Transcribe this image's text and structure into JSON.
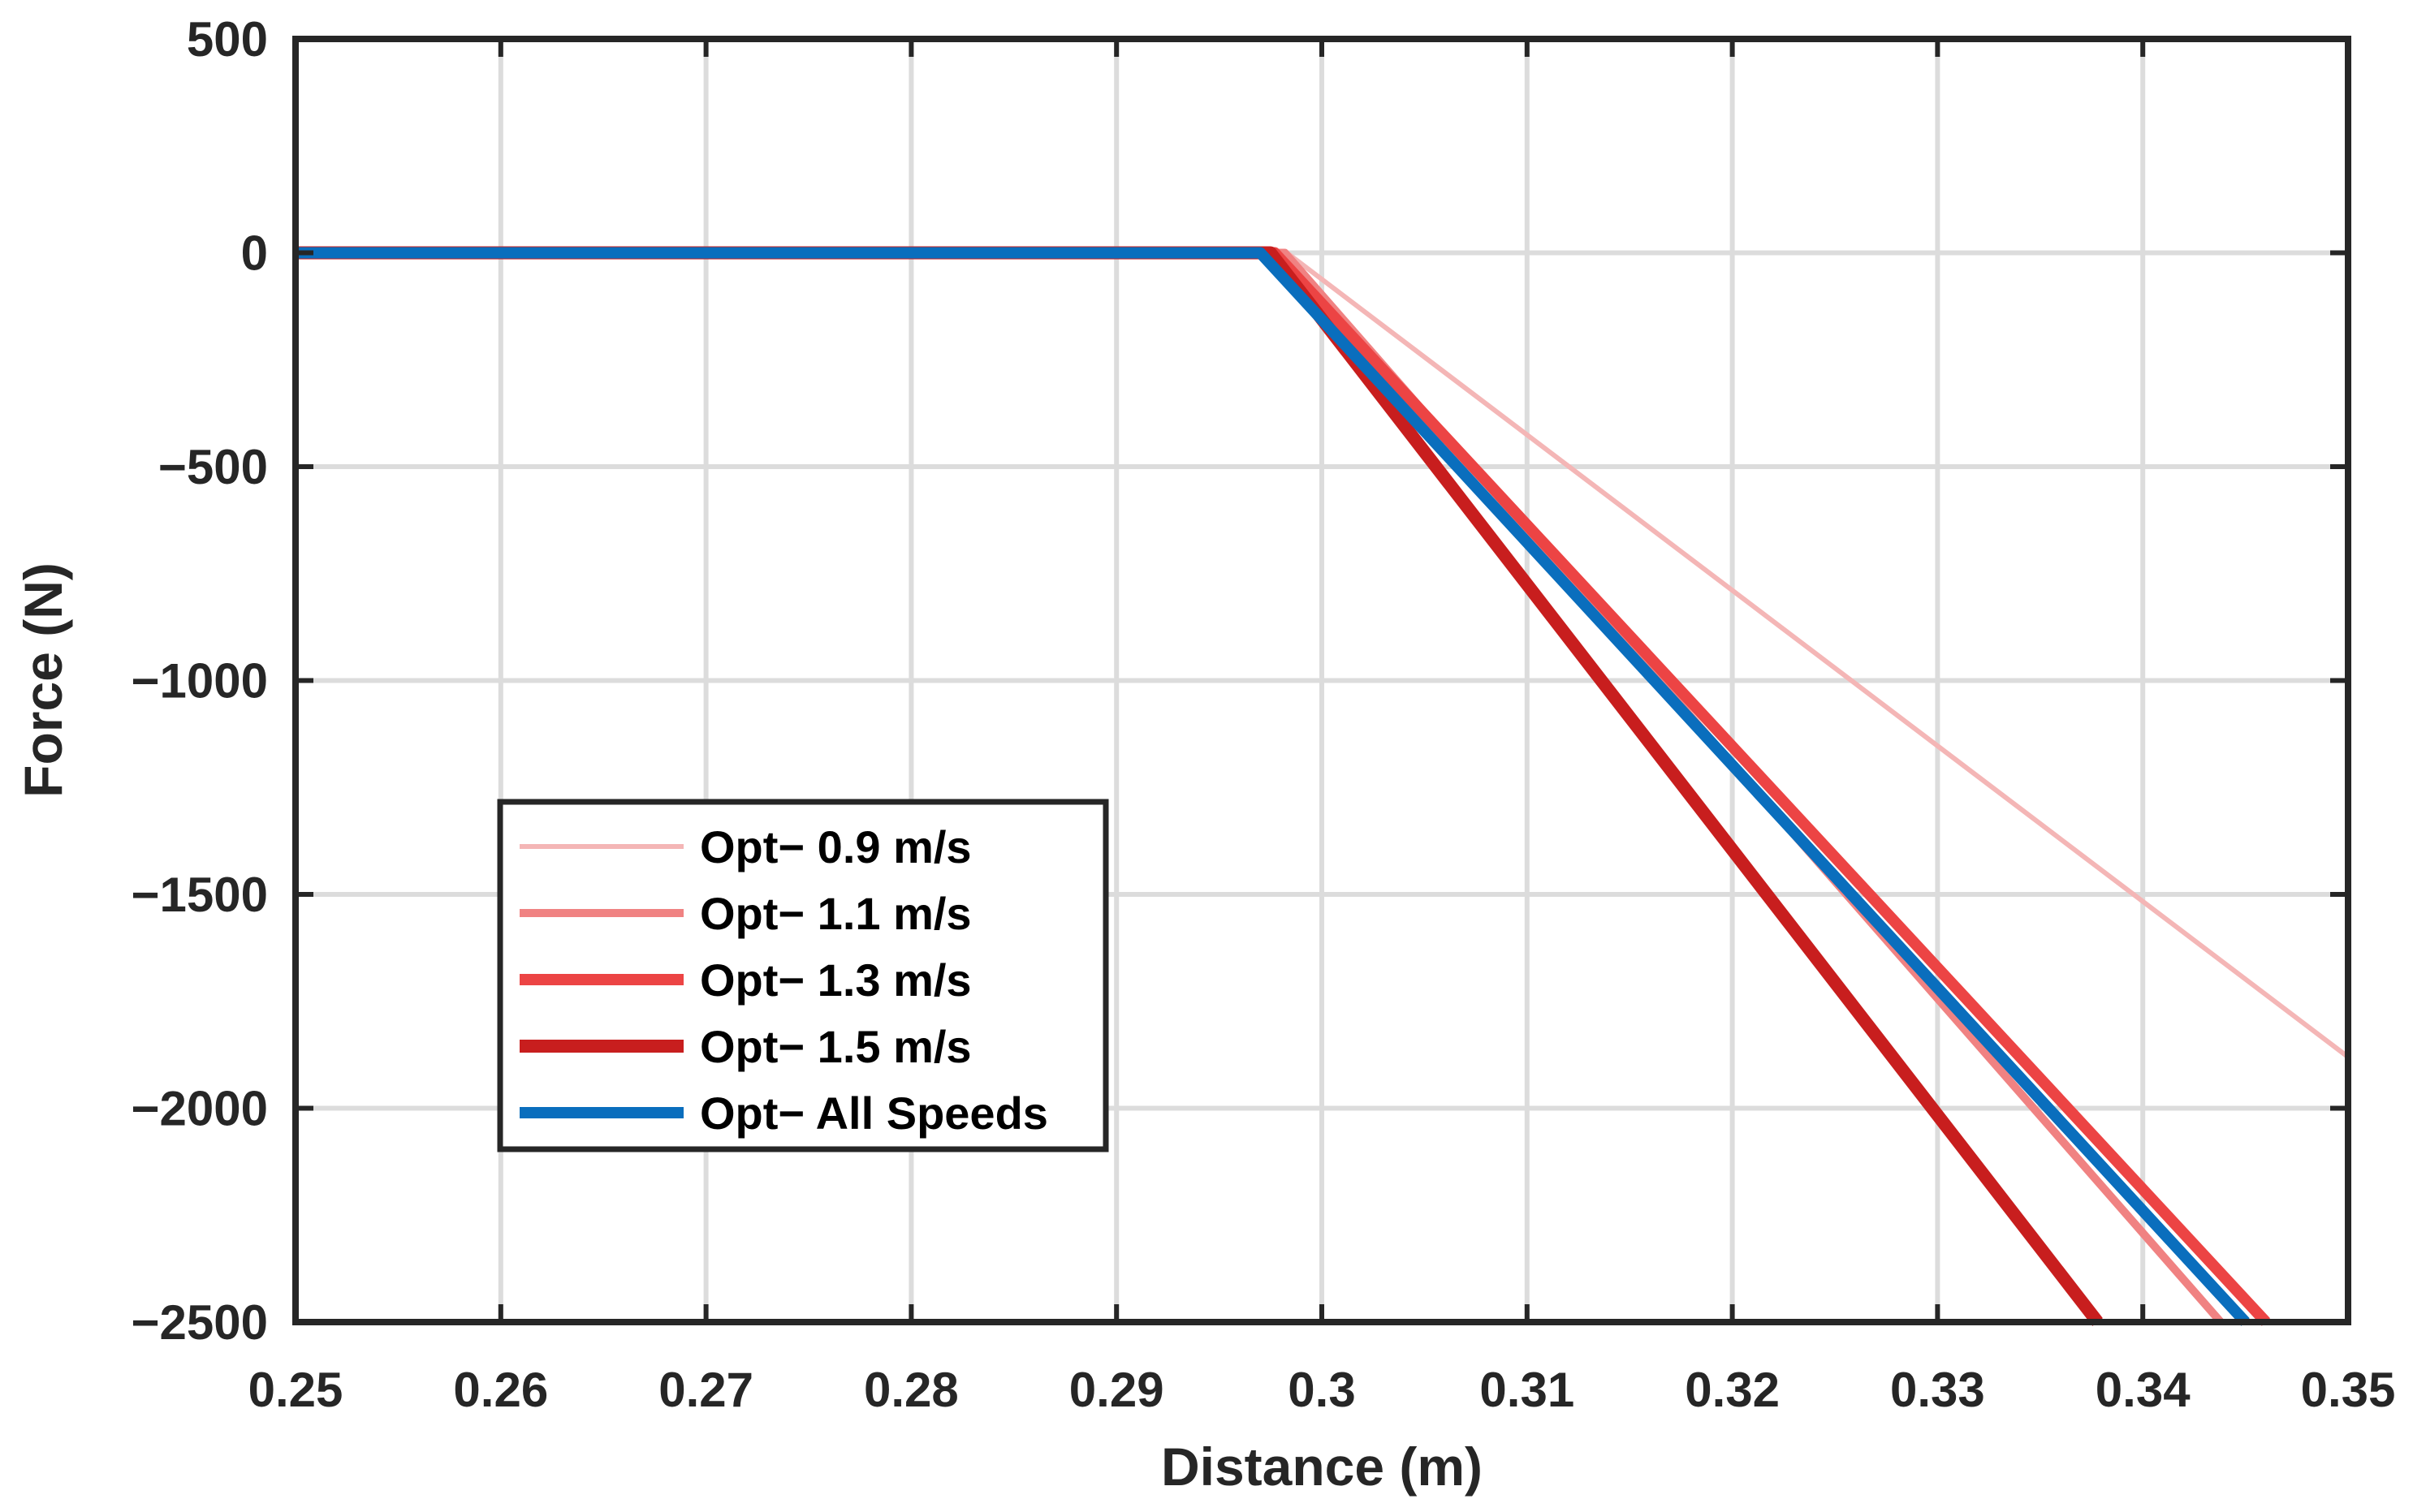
{
  "chart_data": {
    "type": "line",
    "title": "",
    "xlabel": "Distance (m)",
    "ylabel": "Force (N)",
    "xlim": [
      0.25,
      0.35
    ],
    "ylim": [
      -2500,
      500
    ],
    "grid": true,
    "legend_position": "bottom-left",
    "x_ticks": [
      0.25,
      0.26,
      0.27,
      0.28,
      0.29,
      0.3,
      0.31,
      0.32,
      0.33,
      0.34,
      0.35
    ],
    "x_tick_labels": [
      "0.25",
      "0.26",
      "0.27",
      "0.28",
      "0.29",
      "0.3",
      "0.31",
      "0.32",
      "0.33",
      "0.34",
      "0.35"
    ],
    "y_ticks": [
      500,
      0,
      -500,
      -1000,
      -1500,
      -2000,
      -2500
    ],
    "y_tick_labels": [
      "500",
      "0",
      "−500",
      "−1000",
      "−1500",
      "−2000",
      "−2500"
    ],
    "series": [
      {
        "name": "Opt− 0.9 m/s",
        "color": "#f4b6b6",
        "width": 6,
        "x": [
          0.25,
          0.2983,
          0.35
        ],
        "y": [
          0,
          0,
          -1880
        ]
      },
      {
        "name": "Opt− 1.1 m/s",
        "color": "#f08282",
        "width": 10,
        "x": [
          0.25,
          0.2982,
          0.3438
        ],
        "y": [
          0,
          0,
          -2500
        ]
      },
      {
        "name": "Opt− 1.3 m/s",
        "color": "#ec4444",
        "width": 14,
        "x": [
          0.25,
          0.2977,
          0.346
        ],
        "y": [
          0,
          0,
          -2500
        ]
      },
      {
        "name": "Opt− 1.5 m/s",
        "color": "#c81e1e",
        "width": 16,
        "x": [
          0.25,
          0.2975,
          0.3378
        ],
        "y": [
          0,
          0,
          -2500
        ]
      },
      {
        "name": "Opt− All Speeds",
        "color": "#0a6ebd",
        "width": 14,
        "x": [
          0.25,
          0.297,
          0.345
        ],
        "y": [
          0,
          0,
          -2500
        ]
      }
    ]
  }
}
